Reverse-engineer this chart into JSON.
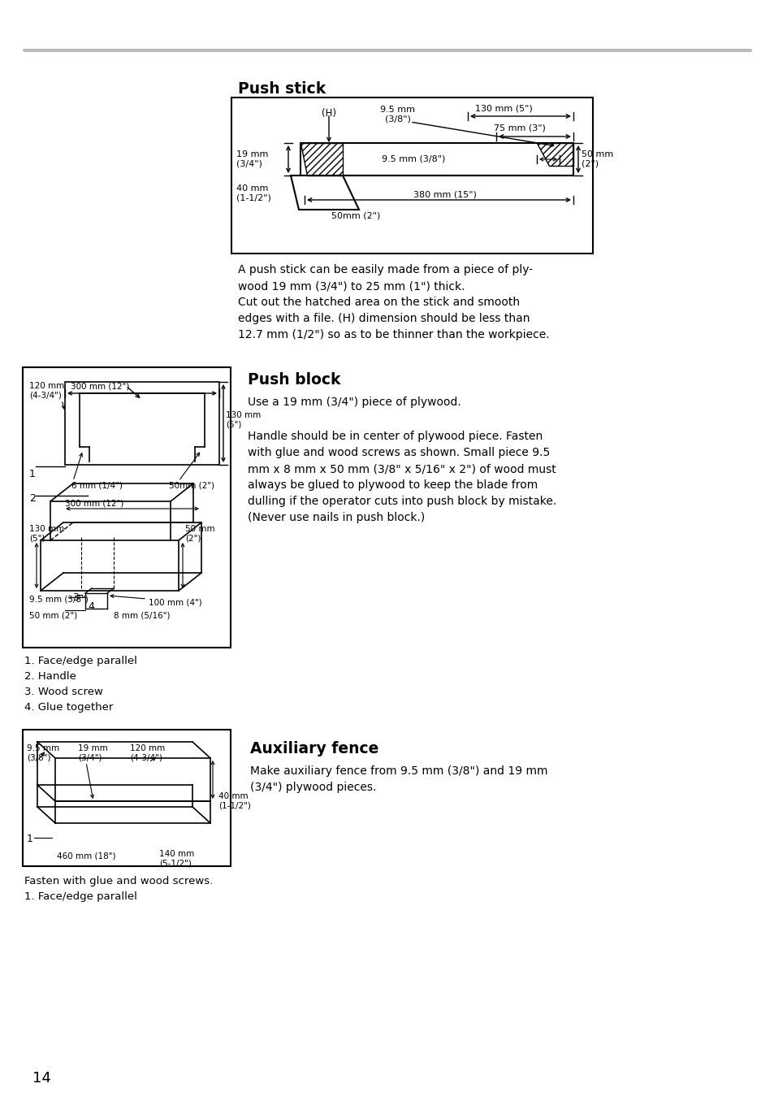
{
  "page_bg": "#ffffff",
  "header_line_color": "#bbbbbb",
  "page_number": "14",
  "push_stick_title": "Push stick",
  "push_stick_text": "A push stick can be easily made from a piece of ply-\nwood 19 mm (3/4\") to 25 mm (1\") thick.\nCut out the hatched area on the stick and smooth\nedges with a file. (H) dimension should be less than\n12.7 mm (1/2\") so as to be thinner than the workpiece.",
  "push_block_title": "Push block",
  "push_block_text1": "Use a 19 mm (3/4\") piece of plywood.",
  "push_block_text2": "Handle should be in center of plywood piece. Fasten\nwith glue and wood screws as shown. Small piece 9.5\nmm x 8 mm x 50 mm (3/8\" x 5/16\" x 2\") of wood must\nalways be glued to plywood to keep the blade from\ndulling if the operator cuts into push block by mistake.\n(Never use nails in push block.)",
  "push_block_labels": [
    "1. Face/edge parallel",
    "2. Handle",
    "3. Wood screw",
    "4. Glue together"
  ],
  "aux_fence_title": "Auxiliary fence",
  "aux_fence_text": "Make auxiliary fence from 9.5 mm (3/8\") and 19 mm\n(3/4\") plywood pieces.",
  "aux_fence_labels": [
    "Fasten with glue and wood screws.",
    "1. Face/edge parallel"
  ]
}
